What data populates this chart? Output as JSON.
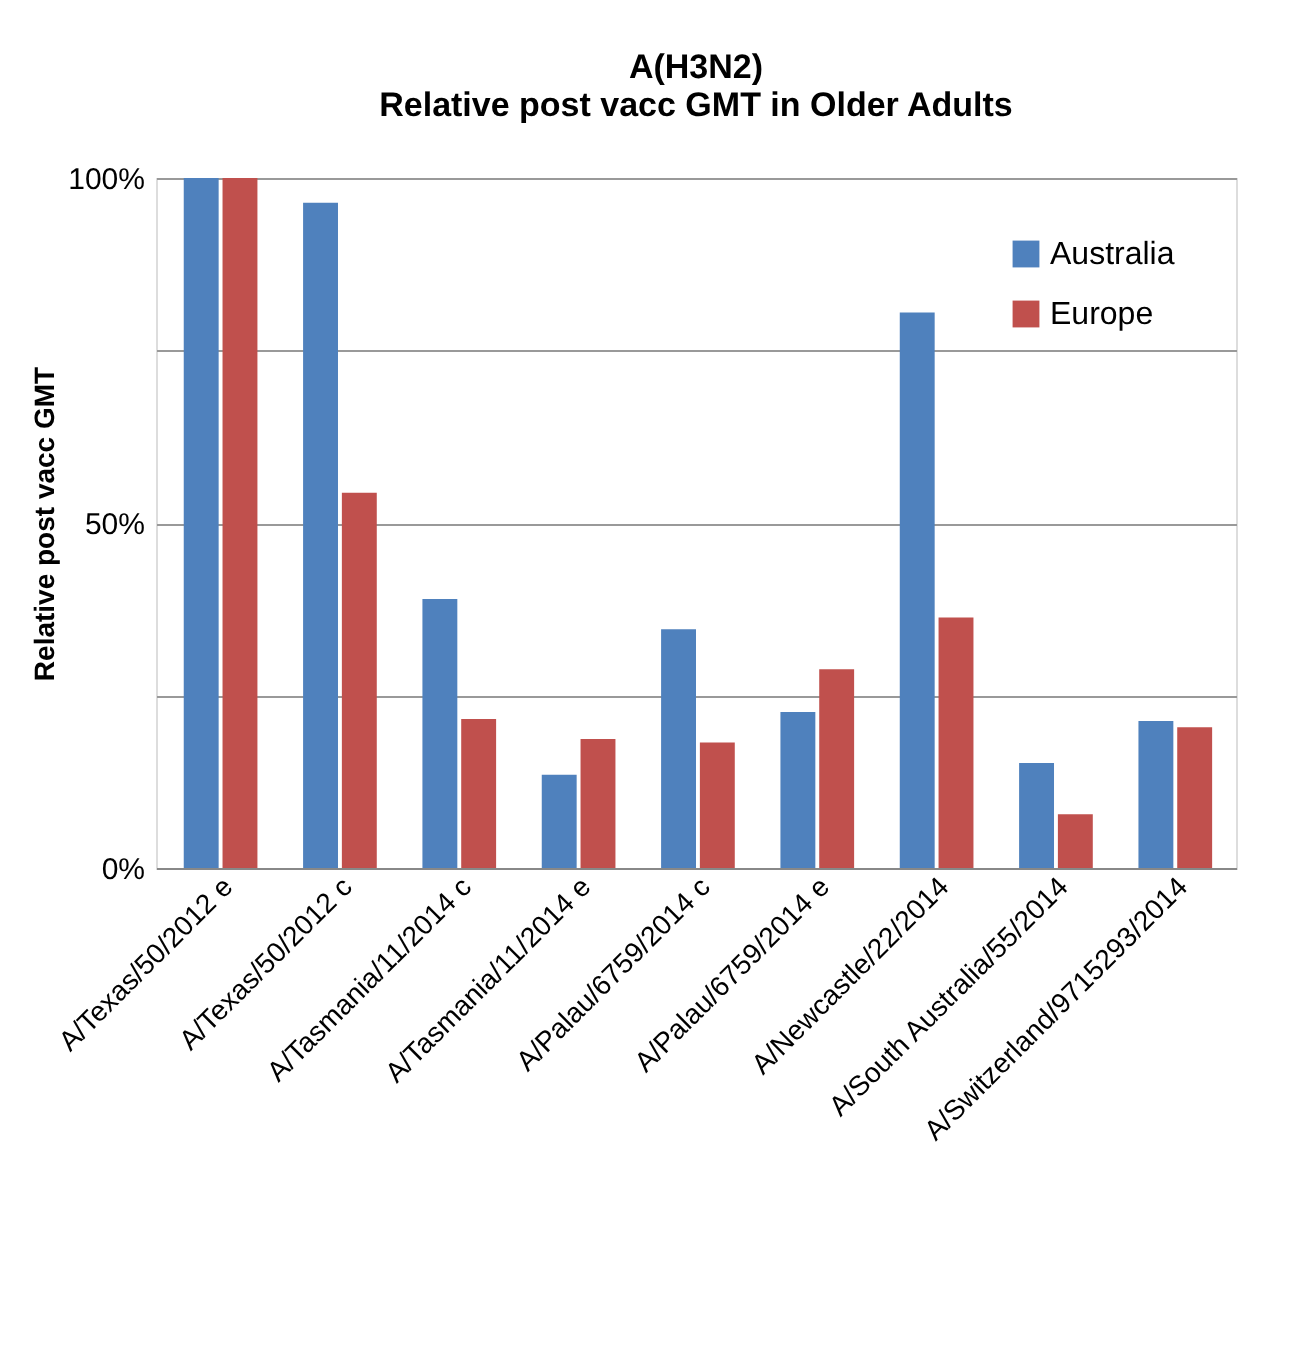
{
  "chart_data": {
    "type": "bar",
    "title": [
      "A(H3N2)",
      "Relative post vacc GMT in Older Adults"
    ],
    "ylabel": "Relative post vacc GMT",
    "categories": [
      "A/Texas/50/2012 e",
      "A/Texas/50/2012 c",
      "A/Tasmania/11/2014 c",
      "A/Tasmania/11/2014 e",
      "A/Palau/6759/2014 c",
      "A/Palau/6759/2014 e",
      "A/Newcastle/22/2014",
      "A/South Australia/55/2014",
      "A/Switzerland/9715293/2014"
    ],
    "series": [
      {
        "name": "Australia",
        "color": "#4f81bd",
        "values": [
          100,
          96.4,
          39.0,
          13.5,
          34.6,
          22.6,
          80.5,
          15.2,
          21.3
        ]
      },
      {
        "name": "Europe",
        "color": "#c0504d",
        "values": [
          100,
          54.4,
          21.6,
          18.7,
          18.2,
          28.8,
          36.3,
          7.8,
          20.4
        ]
      }
    ],
    "ylim": [
      0,
      100
    ],
    "yticks": [
      {
        "value": 0,
        "label": "0%"
      },
      {
        "value": 25,
        "label": null
      },
      {
        "value": 50,
        "label": "50%"
      },
      {
        "value": 75,
        "label": null
      },
      {
        "value": 100,
        "label": "100%"
      }
    ],
    "grid": "y",
    "legend": "top right"
  }
}
